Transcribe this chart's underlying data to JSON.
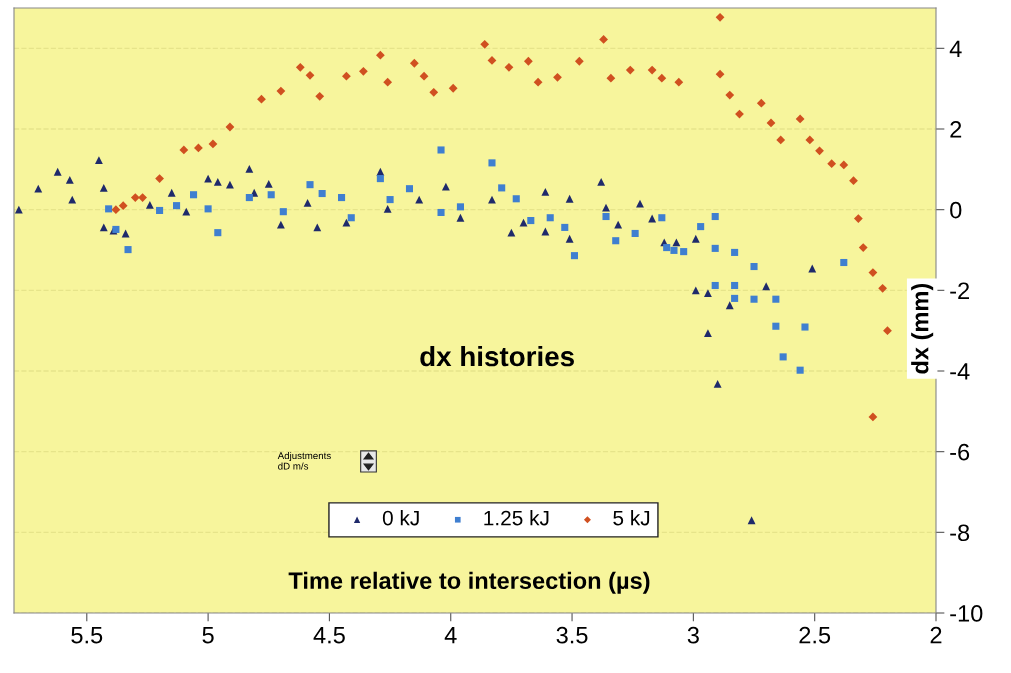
{
  "chart_data": {
    "type": "scatter",
    "title": "dx histories",
    "xlabel": "Time relative to intersection (µs)",
    "ylabel": "dx (mm)",
    "annotations": [
      "Adjustments\ndD m/s"
    ],
    "xlim": [
      5.8,
      2
    ],
    "xticks": [
      5.5,
      5,
      4.5,
      4,
      3.5,
      3,
      2.5,
      2
    ],
    "ylim": [
      -10,
      5
    ],
    "yticks": [
      -10,
      -8,
      -6,
      -4,
      -2,
      0,
      2,
      4
    ],
    "grid": "y",
    "legend": "bottom",
    "series": [
      {
        "name": "0 kJ",
        "color": "#1f2a6b",
        "marker": "triangle",
        "x": [
          5.78,
          5.7,
          5.62,
          5.57,
          5.56,
          5.45,
          5.43,
          5.43,
          5.39,
          5.34,
          5.24,
          5.15,
          5.09,
          5.0,
          4.96,
          4.91,
          4.83,
          4.81,
          4.75,
          4.7,
          4.59,
          4.55,
          4.43,
          4.29,
          4.26,
          4.13,
          4.02,
          3.96,
          3.83,
          3.75,
          3.7,
          3.61,
          3.61,
          3.51,
          3.51,
          3.38,
          3.36,
          3.31,
          3.22,
          3.17,
          3.12,
          3.07,
          2.99,
          2.99,
          2.94,
          2.94,
          2.9,
          2.85,
          2.76,
          2.7,
          2.51
        ],
        "values": [
          0.0,
          0.52,
          0.94,
          0.74,
          0.25,
          1.23,
          0.54,
          -0.44,
          -0.52,
          -0.59,
          0.12,
          0.42,
          -0.05,
          0.77,
          0.69,
          0.62,
          1.01,
          0.42,
          0.64,
          -0.37,
          0.17,
          -0.44,
          -0.32,
          0.94,
          0.02,
          0.25,
          0.57,
          -0.2,
          0.25,
          -0.57,
          -0.32,
          0.44,
          -0.54,
          0.27,
          -0.72,
          0.69,
          0.05,
          -0.37,
          0.15,
          -0.22,
          -0.81,
          -0.81,
          -0.72,
          -2.0,
          -2.07,
          -3.06,
          -4.32,
          -2.37,
          -7.7,
          -1.9,
          -1.46
        ]
      },
      {
        "name": "1.25 kJ",
        "color": "#3f7fd0",
        "marker": "square",
        "x": [
          5.41,
          5.38,
          5.33,
          5.2,
          5.13,
          5.06,
          5.0,
          4.96,
          4.83,
          4.74,
          4.69,
          4.58,
          4.53,
          4.45,
          4.41,
          4.29,
          4.25,
          4.17,
          4.04,
          4.04,
          3.96,
          3.83,
          3.79,
          3.73,
          3.67,
          3.59,
          3.53,
          3.49,
          3.36,
          3.32,
          3.24,
          3.13,
          3.11,
          3.08,
          3.04,
          2.97,
          2.91,
          2.91,
          2.83,
          2.75,
          2.91,
          2.83,
          2.83,
          2.75,
          2.66,
          2.66,
          2.63,
          2.54,
          2.56,
          2.38
        ],
        "values": [
          0.02,
          -0.49,
          -0.99,
          -0.02,
          0.1,
          0.37,
          0.02,
          -0.57,
          0.3,
          0.37,
          -0.05,
          0.62,
          0.4,
          0.3,
          -0.2,
          0.77,
          0.25,
          0.52,
          1.48,
          -0.07,
          0.07,
          1.16,
          0.54,
          0.27,
          -0.27,
          -0.2,
          -0.44,
          -1.14,
          -0.17,
          -0.77,
          -0.59,
          -0.2,
          -0.94,
          -1.01,
          -1.04,
          -0.42,
          -0.17,
          -0.96,
          -1.06,
          -1.41,
          -1.88,
          -1.88,
          -2.2,
          -2.22,
          -2.22,
          -2.89,
          -3.65,
          -2.91,
          -3.98,
          -1.31
        ]
      },
      {
        "name": "5 kJ",
        "color": "#d05020",
        "marker": "diamond",
        "x": [
          5.38,
          5.35,
          5.3,
          5.27,
          5.2,
          5.1,
          5.04,
          4.98,
          4.91,
          4.78,
          4.7,
          4.62,
          4.58,
          4.54,
          4.43,
          4.36,
          4.29,
          4.26,
          4.15,
          4.11,
          4.07,
          3.99,
          3.86,
          3.83,
          3.76,
          3.68,
          3.64,
          3.56,
          3.47,
          3.37,
          3.34,
          3.26,
          3.17,
          3.13,
          3.06,
          2.89,
          2.89,
          2.85,
          2.81,
          2.72,
          2.68,
          2.64,
          2.56,
          2.52,
          2.48,
          2.43,
          2.38,
          2.34,
          2.32,
          2.3,
          2.26,
          2.22,
          2.2,
          2.26
        ],
        "values": [
          0.0,
          0.1,
          0.3,
          0.3,
          0.77,
          1.48,
          1.53,
          1.63,
          2.05,
          2.74,
          2.94,
          3.53,
          3.33,
          2.81,
          3.31,
          3.43,
          3.83,
          3.16,
          3.63,
          3.31,
          2.91,
          3.01,
          4.1,
          3.7,
          3.53,
          3.68,
          3.16,
          3.28,
          3.68,
          4.22,
          3.26,
          3.46,
          3.46,
          3.26,
          3.16,
          4.77,
          3.36,
          2.84,
          2.37,
          2.64,
          2.15,
          1.73,
          2.25,
          1.73,
          1.46,
          1.14,
          1.11,
          0.72,
          -0.22,
          -0.94,
          -1.56,
          -1.95,
          -3.0,
          -5.14
        ]
      }
    ]
  }
}
